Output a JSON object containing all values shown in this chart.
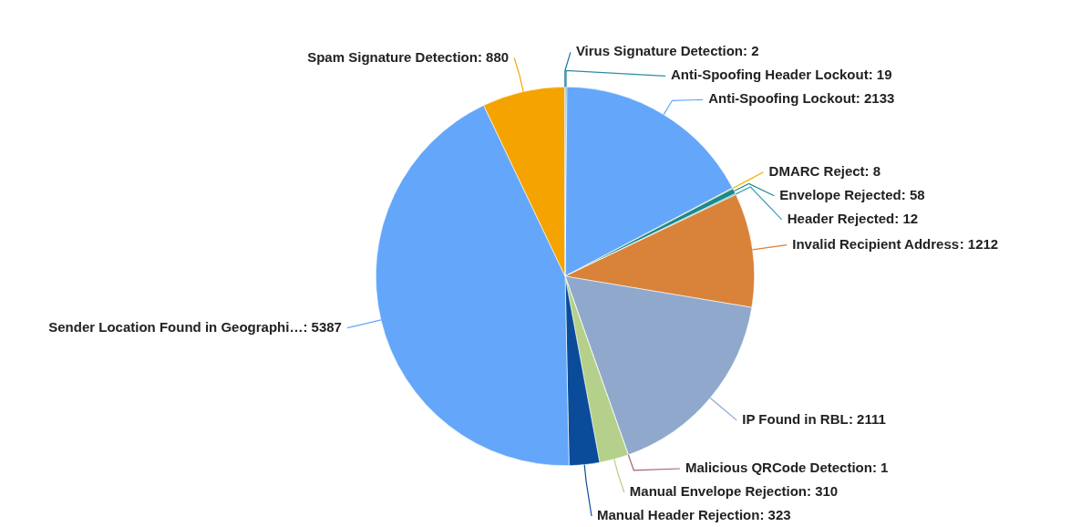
{
  "chart_data": {
    "type": "pie",
    "categories": [
      "Anti-Spoofing Header Lockout",
      "Anti-Spoofing Lockout",
      "DMARC Reject",
      "Envelope Rejected",
      "Header Rejected",
      "Invalid Recipient Address",
      "IP Found in RBL",
      "Malicious QRCode Detection",
      "Manual Envelope Rejection",
      "Manual Header Rejection",
      "Sender Location Found in Geographi…",
      "Spam Signature Detection",
      "Virus Signature Detection"
    ],
    "values": [
      19,
      2133,
      8,
      58,
      12,
      1212,
      2111,
      1,
      310,
      323,
      5387,
      880,
      2
    ],
    "value_labels": [
      ": 19",
      ": 2133",
      ": 8",
      ": 58",
      ": 12",
      ": 1212",
      ": 2111",
      ": 1",
      ": 310",
      ": 323",
      ": 5387",
      ": 880",
      ": 2"
    ],
    "colors": [
      "#2a8ca0",
      "#64a6fa",
      "#f0b400",
      "#1a8a8a",
      "#3c9fb4",
      "#d9823a",
      "#8fa8cc",
      "#a0607a",
      "#b5d08a",
      "#0a4c9a",
      "#64a6fa",
      "#f5a300",
      "#1a6fa0"
    ],
    "legend": false
  }
}
